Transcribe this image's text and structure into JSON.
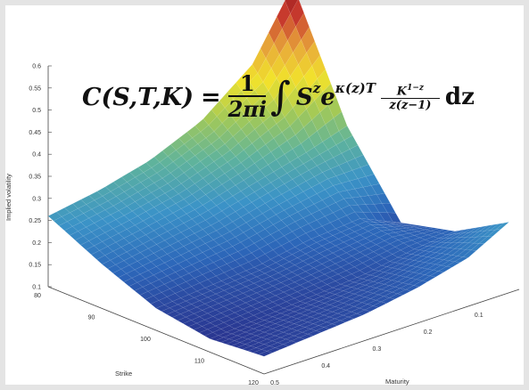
{
  "chart_data": {
    "type": "surface",
    "title": "",
    "zlabel": "Implied volatility",
    "xlabel": "Strike",
    "ylabel": "Maturity",
    "strike_ticks": [
      "80",
      "90",
      "100",
      "110",
      "120"
    ],
    "maturity_ticks": [
      "0.5",
      "0.4",
      "0.3",
      "0.2",
      "0.1"
    ],
    "vol_ticks": [
      "0.1",
      "0.15",
      "0.2",
      "0.25",
      "0.3",
      "0.35",
      "0.4",
      "0.45",
      "0.5",
      "0.55",
      "0.6"
    ],
    "strike_range": [
      80,
      120
    ],
    "maturity_range": [
      0,
      0.5
    ],
    "vol_range": [
      0.1,
      0.6
    ],
    "colormap": [
      "#2a3590",
      "#2c66b9",
      "#3b93c7",
      "#5fb39c",
      "#a3c957",
      "#f1e22c",
      "#e8a93a",
      "#c93b2e",
      "#9c1a1f"
    ],
    "surface": {
      "strikes": [
        80,
        90,
        100,
        110,
        120
      ],
      "maturities": [
        0.02,
        0.1,
        0.2,
        0.3,
        0.4,
        0.5
      ],
      "vol_by_maturity": [
        [
          0.6,
          0.33,
          0.16,
          0.19,
          0.26
        ],
        [
          0.45,
          0.3,
          0.2,
          0.18,
          0.21
        ],
        [
          0.36,
          0.27,
          0.19,
          0.16,
          0.18
        ],
        [
          0.31,
          0.24,
          0.17,
          0.15,
          0.16
        ],
        [
          0.28,
          0.22,
          0.16,
          0.14,
          0.15
        ],
        [
          0.26,
          0.2,
          0.15,
          0.13,
          0.14
        ]
      ]
    }
  },
  "formula": {
    "lhs": "C(S,T,K)",
    "eq": "=",
    "frac_num": "1",
    "frac_den": "2πi",
    "integral": "∫",
    "base": "S",
    "base_exp": "z",
    "exp_base": "e",
    "exp_power": "κ(z)T",
    "ratio_num_base": "K",
    "ratio_num_exp": "1−z",
    "ratio_den": "z(z−1)",
    "dz": "dz"
  }
}
